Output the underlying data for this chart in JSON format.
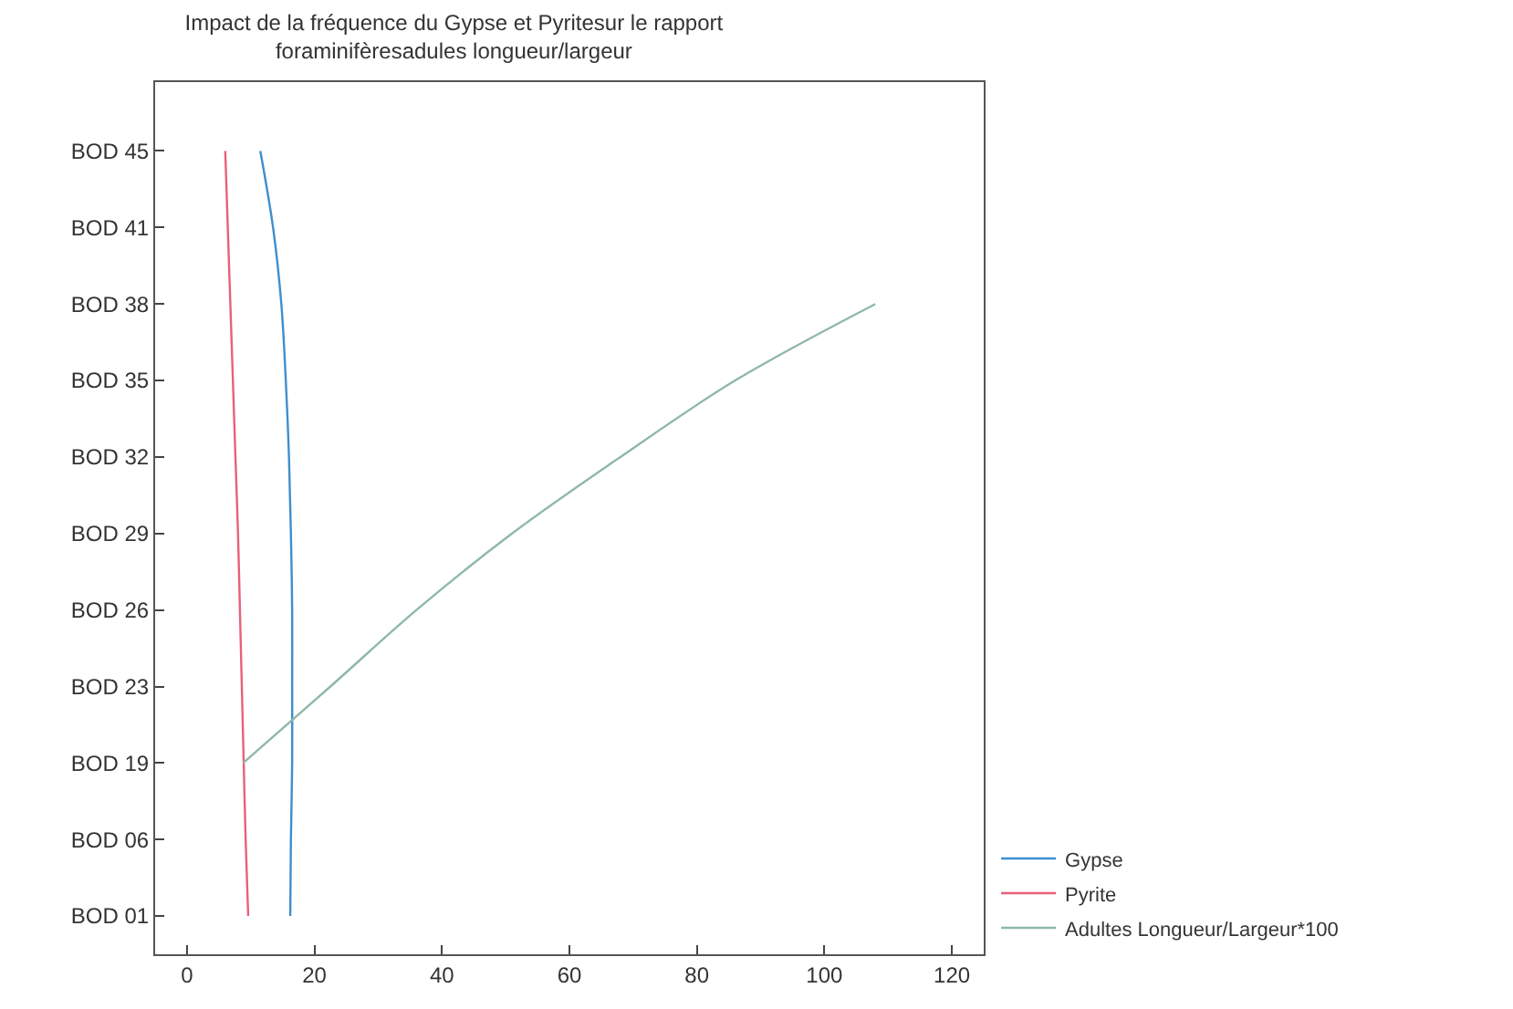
{
  "chart_data": {
    "type": "line",
    "orientation": "horizontal",
    "title": "Impact de la fréquence du Gypse et Pyritesur le rapport foraminifèresadules longueur/largeur",
    "categories": [
      "BOD 45",
      "BOD 41",
      "BOD 38",
      "BOD 35",
      "BOD 32",
      "BOD 29",
      "BOD 26",
      "BOD 23",
      "BOD 19",
      "BOD 06",
      "BOD 01"
    ],
    "series": [
      {
        "name": "Gypse",
        "color": "#3d8fd0",
        "values": [
          11.5,
          13.5,
          14.8,
          15.5,
          16,
          16.3,
          16.5,
          16.5,
          16.5,
          16.3,
          16.2
        ]
      },
      {
        "name": "Pyrite",
        "color": "#e8607a",
        "values": [
          6.0,
          6.4,
          6.8,
          7.2,
          7.6,
          8.0,
          8.3,
          8.6,
          8.9,
          9.2,
          9.6
        ]
      },
      {
        "name": "Adultes Longueur/Largeur*100",
        "color": "#8fb8a8",
        "values": [
          null,
          null,
          108,
          86,
          68,
          51,
          36,
          22.5,
          8.8,
          null,
          null
        ]
      }
    ],
    "xlim": [
      -5,
      125
    ],
    "xticks": [
      0,
      20,
      40,
      60,
      80,
      100,
      120
    ],
    "legend": "bottom right",
    "marker": "none",
    "line_style": "solid"
  }
}
